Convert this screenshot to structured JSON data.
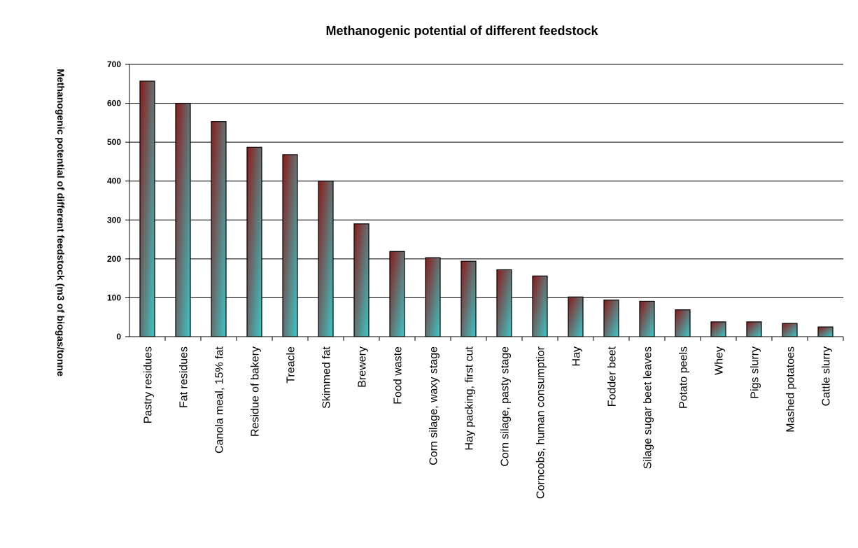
{
  "chart_data": {
    "type": "bar",
    "title": "Methanogenic potential of different feedstock",
    "xlabel": "",
    "ylabel": "Methanogenic potential of different feedstock (m3 of biogas/tonne",
    "ylim": [
      0,
      700
    ],
    "yticks": [
      0,
      100,
      200,
      300,
      400,
      500,
      600,
      700
    ],
    "grid": true,
    "legend": "none",
    "categories": [
      "Pastry residues",
      "Fat residues",
      "Canola meal, 15% fat",
      "Residue of bakery",
      "Treacle",
      "Skimmed fat",
      "Brewery",
      "Food waste",
      "Corn silage, waxy stage",
      "Hay packing, first cut",
      "Corn silage, pasty stage",
      "Corncobs, human consumptior",
      "Hay",
      "Fodder beet",
      "Silage sugar beet leaves",
      "Potato peels",
      "Whey",
      "Pigs slurry",
      "Mashed potatoes",
      "Cattle slurry"
    ],
    "values": [
      657,
      600,
      553,
      487,
      468,
      400,
      290,
      219,
      203,
      194,
      172,
      156,
      102,
      94,
      91,
      69,
      38,
      38,
      34,
      25
    ],
    "colors": {
      "bar_top": "#8b1a1a",
      "bar_bottom": "#3cc8c8",
      "grid": "#000000"
    }
  }
}
